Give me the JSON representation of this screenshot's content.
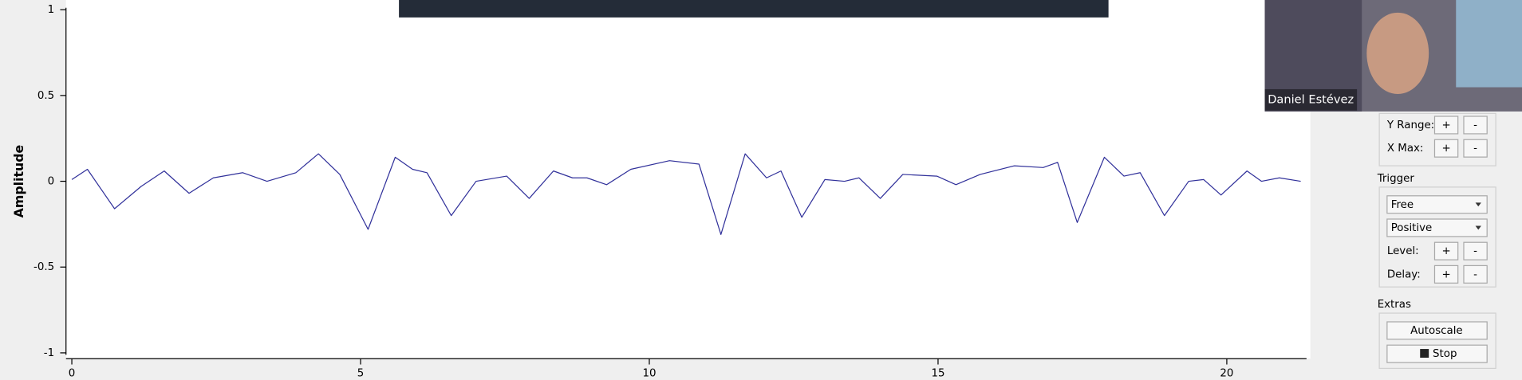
{
  "chart_data": {
    "type": "line",
    "y_label": "Amplitude",
    "xlim": [
      0,
      21.33
    ],
    "ylim": [
      -1,
      1
    ],
    "xticks": [
      0,
      5,
      10,
      15,
      20
    ],
    "yticks": [
      -1,
      -0.5,
      0,
      0.5,
      1
    ],
    "series": [
      {
        "color": "#30309a",
        "x": [
          0,
          0.27,
          0.74,
          1.2,
          1.6,
          2.03,
          2.45,
          2.96,
          3.38,
          3.88,
          4.27,
          4.64,
          5.13,
          5.6,
          5.9,
          6.15,
          6.57,
          7.0,
          7.53,
          7.92,
          8.34,
          8.67,
          8.92,
          9.26,
          9.68,
          10.35,
          10.86,
          11.24,
          11.66,
          12.03,
          12.28,
          12.64,
          13.04,
          13.38,
          13.63,
          14.0,
          14.39,
          14.98,
          15.31,
          15.73,
          16.32,
          16.82,
          17.07,
          17.41,
          17.88,
          18.22,
          18.5,
          18.92,
          19.34,
          19.6,
          19.9,
          20.35,
          20.6,
          20.91,
          21.28
        ],
        "values": [
          0.01,
          0.07,
          -0.16,
          -0.03,
          0.06,
          -0.07,
          0.02,
          0.05,
          0.0,
          0.05,
          0.16,
          0.04,
          -0.28,
          0.14,
          0.07,
          0.05,
          -0.2,
          0.0,
          0.03,
          -0.1,
          0.06,
          0.02,
          0.02,
          -0.02,
          0.07,
          0.12,
          0.1,
          -0.31,
          0.16,
          0.02,
          0.06,
          -0.21,
          0.01,
          0.0,
          0.02,
          -0.1,
          0.04,
          0.03,
          -0.02,
          0.04,
          0.09,
          0.08,
          0.11,
          -0.24,
          0.14,
          0.03,
          0.05,
          -0.2,
          0.0,
          0.01,
          -0.08,
          0.06,
          0.0,
          0.02,
          0.0
        ]
      }
    ]
  },
  "ui": {
    "webcam_name": "Daniel Estévez",
    "y_range": "Y Range:",
    "x_max": "X Max:",
    "plus": "+",
    "minus": "-",
    "trigger": "Trigger",
    "trigger_mode": "Free",
    "trigger_slope": "Positive",
    "level": "Level:",
    "delay": "Delay:",
    "extras": "Extras",
    "autoscale": "Autoscale",
    "stop": "Stop"
  }
}
